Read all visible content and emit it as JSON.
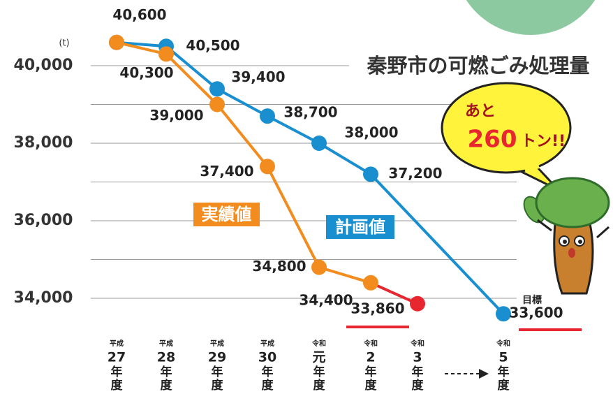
{
  "chart_data": {
    "type": "line",
    "title": "秦野市の可燃ごみ処理量",
    "y_unit": "(t)",
    "categories": [
      {
        "era": "平成",
        "year": "27"
      },
      {
        "era": "平成",
        "year": "28"
      },
      {
        "era": "平成",
        "year": "29"
      },
      {
        "era": "平成",
        "year": "30"
      },
      {
        "era": "令和",
        "year": "元"
      },
      {
        "era": "令和",
        "year": "2"
      },
      {
        "era": "令和",
        "year": "3"
      },
      null,
      {
        "era": "令和",
        "year": "5"
      }
    ],
    "year_suffix": [
      "年",
      "度"
    ],
    "ylim": [
      33200,
      41200
    ],
    "yticks": [
      {
        "value": 34000,
        "label": "34,000"
      },
      {
        "value": 36000,
        "label": "36,000"
      },
      {
        "value": 38000,
        "label": "38,000"
      },
      {
        "value": 40000,
        "label": "40,000"
      }
    ],
    "minor_grid": [
      35000,
      37000,
      39000
    ],
    "grid": true,
    "series": [
      {
        "name": "計画値",
        "color": "#1a8fd0",
        "x": [
          0,
          1,
          2,
          3,
          4,
          5,
          8
        ],
        "values": [
          40600,
          40500,
          39400,
          38700,
          38000,
          37200,
          33600
        ],
        "value_labels": [
          null,
          "40,500",
          "39,400",
          "38,700",
          "38,000",
          "37,200",
          "33,600"
        ]
      },
      {
        "name": "実績値",
        "color": "#f28c1e",
        "last_color": "#e8262f",
        "x": [
          0,
          1,
          2,
          3,
          4,
          5,
          6
        ],
        "values": [
          40600,
          40300,
          39000,
          37400,
          34800,
          34400,
          33860
        ],
        "value_labels": [
          "40,600",
          "40,300",
          "39,000",
          "37,400",
          "34,800",
          "34,400",
          "33,860"
        ]
      }
    ],
    "target_label": "目標",
    "callout": {
      "line1": "あと",
      "number": 260,
      "unit": "トン!!"
    }
  }
}
